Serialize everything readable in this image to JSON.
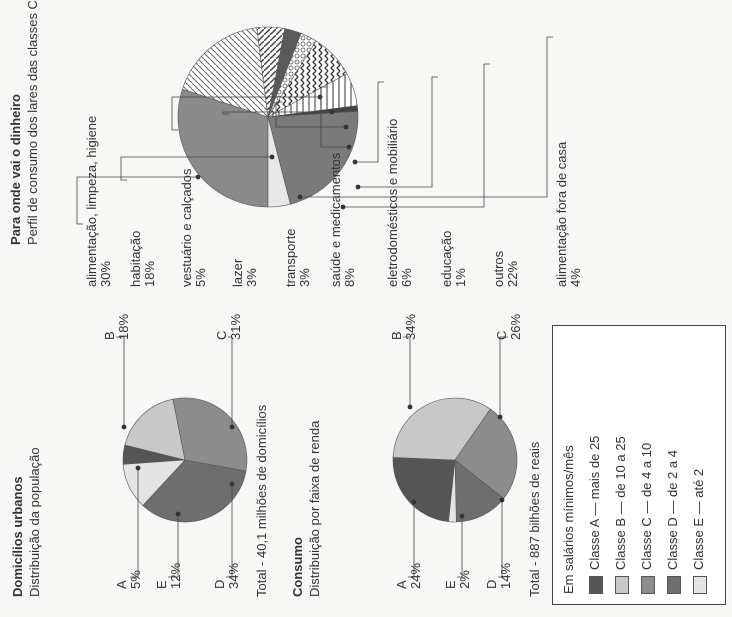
{
  "colors": {
    "classA": "#555555",
    "classB": "#c8c8c8",
    "classC": "#8c8c8c",
    "classD": "#6e6e6e",
    "classE": "#e4e4e4"
  },
  "chart_data": [
    {
      "type": "pie",
      "title": "Domicílios urbanos",
      "subtitle": "Distribuição da população",
      "slices": [
        {
          "label": "A",
          "value": 5
        },
        {
          "label": "B",
          "value": 18
        },
        {
          "label": "C",
          "value": 31
        },
        {
          "label": "D",
          "value": 34
        },
        {
          "label": "E",
          "value": 12
        }
      ],
      "labels_display": {
        "A": "A",
        "B": "B",
        "C": "C",
        "D": "D",
        "E": "E"
      },
      "values_display": {
        "A": "5%",
        "B": "18%",
        "C": "31%",
        "D": "34%",
        "E": "12%"
      },
      "total": "Total - 40,1 milhões de domicílios"
    },
    {
      "type": "pie",
      "title": "Consumo",
      "subtitle": "Distribuição por faixa de renda",
      "slices": [
        {
          "label": "A",
          "value": 24
        },
        {
          "label": "B",
          "value": 34
        },
        {
          "label": "C",
          "value": 26
        },
        {
          "label": "D",
          "value": 14
        },
        {
          "label": "E",
          "value": 2
        }
      ],
      "labels_display": {
        "A": "A",
        "B": "B",
        "C": "C",
        "D": "D",
        "E": "E"
      },
      "values_display": {
        "A": "24%",
        "B": "34%",
        "C": "26%",
        "D": "14%",
        "E": "2%"
      },
      "total": "Total - 887 bilhões de reais"
    },
    {
      "type": "pie",
      "title": "Para onde vai o dinheiro",
      "subtitle": "Perfil de consumo dos lares das classes C e D",
      "slices": [
        {
          "label": "alimentação, limpeza, higiene",
          "value": 30
        },
        {
          "label": "habitação",
          "value": 18
        },
        {
          "label": "vestuário e calçados",
          "value": 5
        },
        {
          "label": "lazer",
          "value": 3
        },
        {
          "label": "transporte",
          "value": 3
        },
        {
          "label": "saúde e medicamentos",
          "value": 8
        },
        {
          "label": "eletrodomésticos e mobiliário",
          "value": 6
        },
        {
          "label": "educação",
          "value": 1
        },
        {
          "label": "outros",
          "value": 22
        },
        {
          "label": "alimentação fora de casa",
          "value": 4
        }
      ],
      "values_display": [
        "30%",
        "18%",
        "5%",
        "3%",
        "3%",
        "8%",
        "6%",
        "1%",
        "22%",
        "4%"
      ]
    }
  ],
  "legend": {
    "title": "Em salários mínimos/mês",
    "items": [
      {
        "label": "Classe A — mais de 25"
      },
      {
        "label": "Classe B — de 10 a 25"
      },
      {
        "label": "Classe C — de 4 a 10"
      },
      {
        "label": "Classe D — de 2 a 4"
      },
      {
        "label": "Classe E — até 2"
      }
    ]
  }
}
